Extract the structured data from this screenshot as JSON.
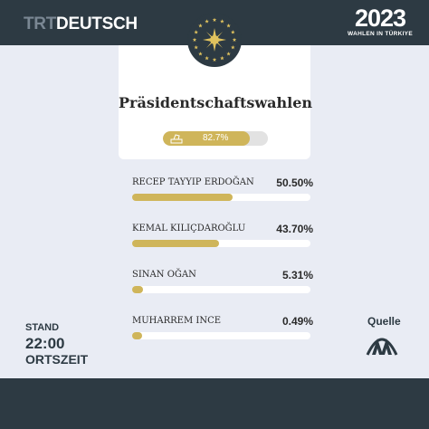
{
  "header": {
    "brand_prefix": "TRT",
    "brand_suffix": "DEUTSCH",
    "election_year": "2023",
    "election_subtitle": "WAHLEN IN TÜRKIYE"
  },
  "card": {
    "title": "Präsidentschaftswahlen",
    "turnout_label": "82.7%",
    "turnout_percent": 82.7,
    "turnout_icon": "ballot-box-icon"
  },
  "candidates": [
    {
      "name": "RECEP TAYYIP ERDOĞAN",
      "percent_label": "50.50%",
      "percent": 50.5
    },
    {
      "name": "KEMAL KILIÇDAROĞLU",
      "percent_label": "43.70%",
      "percent": 43.7
    },
    {
      "name": "SINAN OĞAN",
      "percent_label": "5.31%",
      "percent": 5.31
    },
    {
      "name": "MUHARREM INCE",
      "percent_label": "0.49%",
      "percent": 0.49
    }
  ],
  "stand": {
    "label": "STAND",
    "time": "22:00",
    "zone": "ORTSZEIT"
  },
  "source": {
    "label": "Quelle",
    "logo_icon": "anadolu-agency-logo"
  },
  "colors": {
    "dark": "#2d3a43",
    "background": "#e9ecf4",
    "gold": "#cfb55a"
  }
}
